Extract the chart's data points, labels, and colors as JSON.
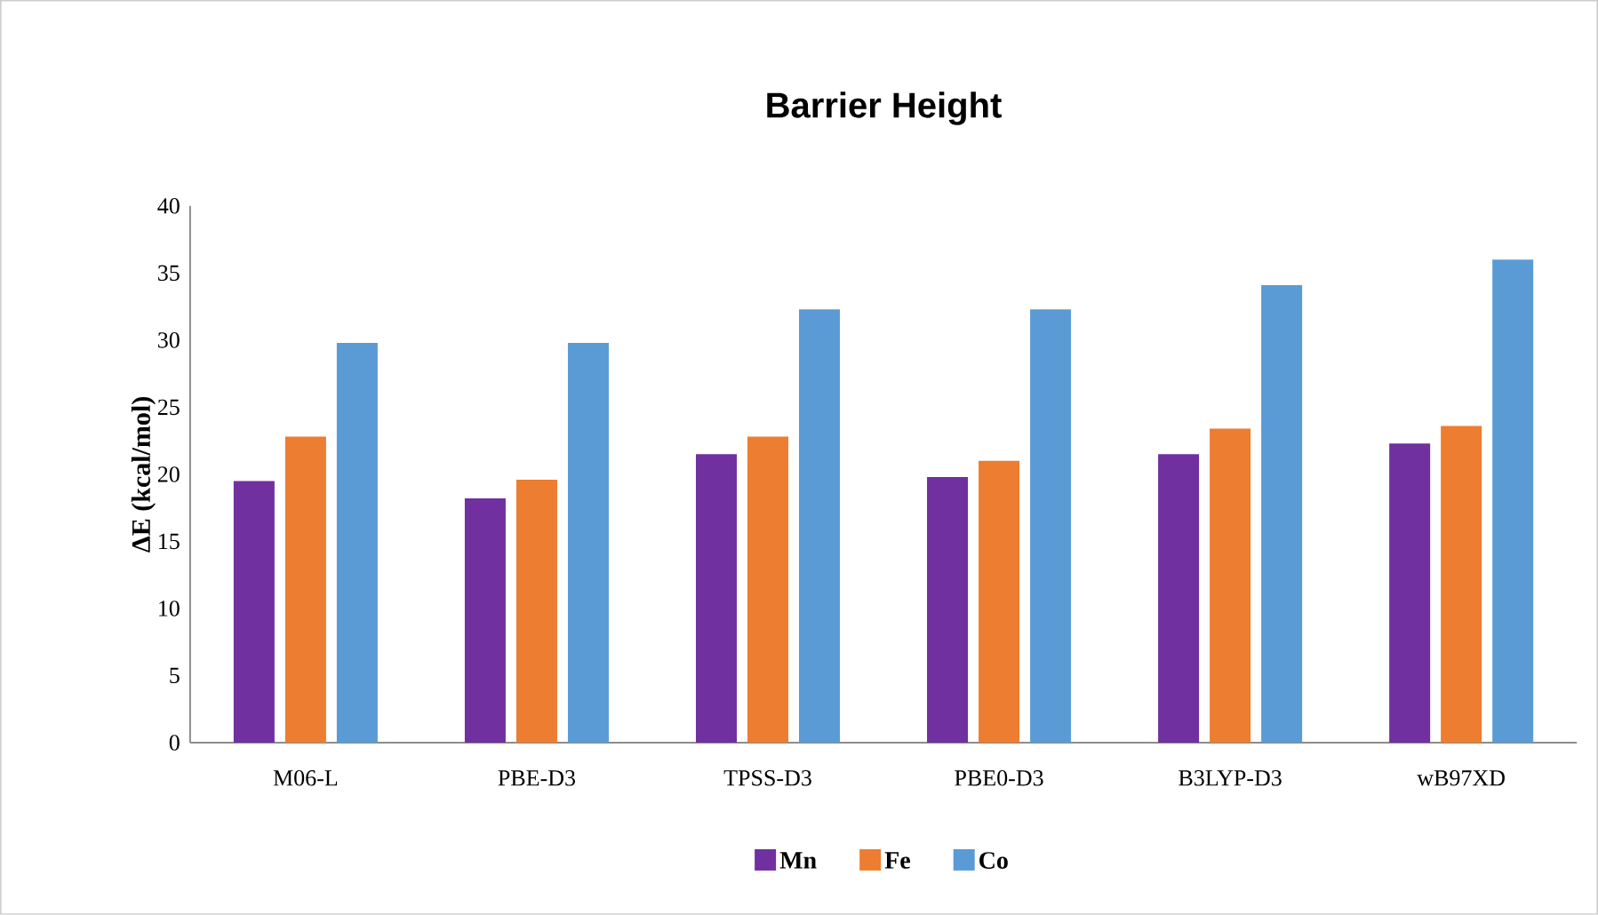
{
  "chart_data": {
    "type": "bar",
    "title": "Barrier Height",
    "ylabel": "ΔE (kcal/mol)",
    "categories": [
      "M06-L",
      "PBE-D3",
      "TPSS-D3",
      "PBE0-D3",
      "B3LYP-D3",
      "wB97XD"
    ],
    "series": [
      {
        "name": "Mn",
        "color": "#7030a0",
        "values": [
          19.5,
          18.2,
          21.5,
          19.8,
          21.5,
          22.3
        ]
      },
      {
        "name": "Fe",
        "color": "#ed7d31",
        "values": [
          22.8,
          19.6,
          22.8,
          21.0,
          23.4,
          23.6
        ]
      },
      {
        "name": "Co",
        "color": "#5b9bd5",
        "values": [
          29.8,
          29.8,
          32.3,
          32.3,
          34.1,
          36.0
        ]
      }
    ],
    "ylim": [
      0,
      40
    ],
    "yticks": [
      0,
      5,
      10,
      15,
      20,
      25,
      30,
      35,
      40
    ],
    "grid": false,
    "legend": "bottom"
  }
}
